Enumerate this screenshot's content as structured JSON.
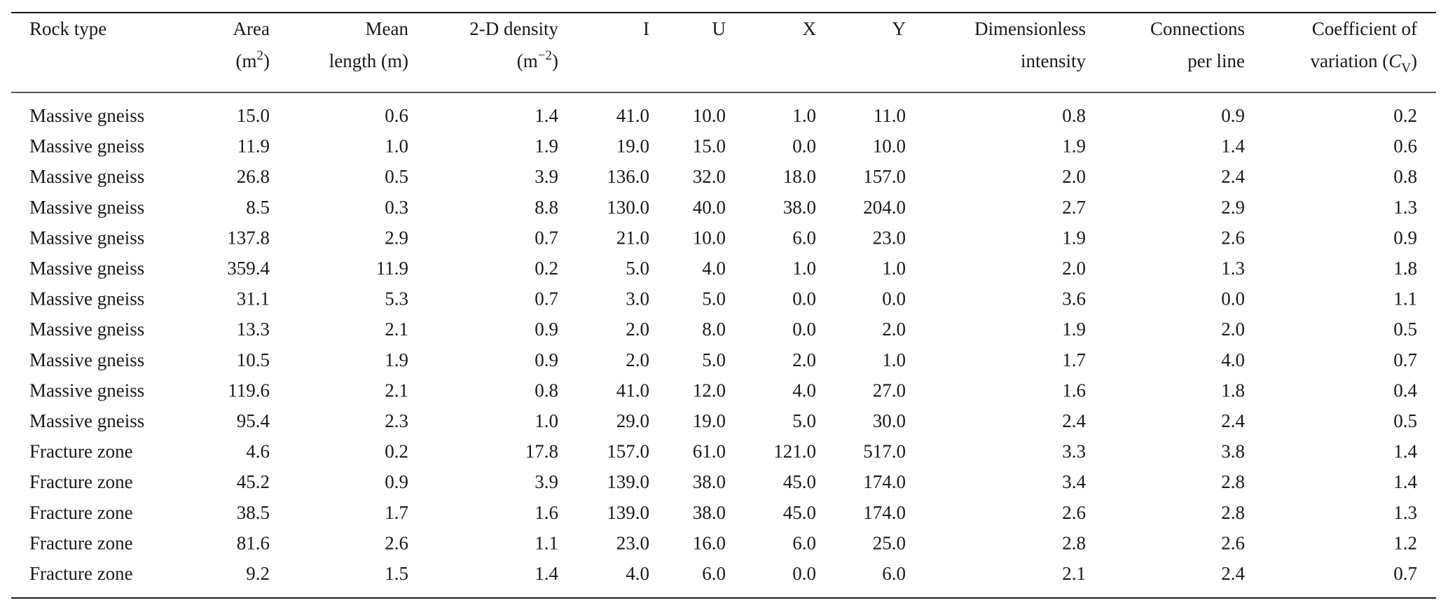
{
  "table": {
    "columns": [
      [
        [
          "Rock type"
        ]
      ],
      [
        [
          "Area"
        ],
        [
          "(m",
          {
            "sup": "2"
          },
          ")"
        ]
      ],
      [
        [
          "Mean"
        ],
        [
          "length (m)"
        ]
      ],
      [
        [
          "2-D density"
        ],
        [
          "(m",
          {
            "sup": "−2"
          },
          ")"
        ]
      ],
      [
        [
          "I"
        ]
      ],
      [
        [
          "U"
        ]
      ],
      [
        [
          "X"
        ]
      ],
      [
        [
          "Y"
        ]
      ],
      [
        [
          "Dimensionless"
        ],
        [
          "intensity"
        ]
      ],
      [
        [
          "Connections"
        ],
        [
          "per line"
        ]
      ],
      [
        [
          "Coefficient of"
        ],
        [
          "variation (",
          {
            "i": "C"
          },
          {
            "sub": "V"
          },
          ")"
        ]
      ]
    ],
    "rows": [
      [
        "Massive gneiss",
        "15.0",
        "0.6",
        "1.4",
        "41.0",
        "10.0",
        "1.0",
        "11.0",
        "0.8",
        "0.9",
        "0.2"
      ],
      [
        "Massive gneiss",
        "11.9",
        "1.0",
        "1.9",
        "19.0",
        "15.0",
        "0.0",
        "10.0",
        "1.9",
        "1.4",
        "0.6"
      ],
      [
        "Massive gneiss",
        "26.8",
        "0.5",
        "3.9",
        "136.0",
        "32.0",
        "18.0",
        "157.0",
        "2.0",
        "2.4",
        "0.8"
      ],
      [
        "Massive gneiss",
        "8.5",
        "0.3",
        "8.8",
        "130.0",
        "40.0",
        "38.0",
        "204.0",
        "2.7",
        "2.9",
        "1.3"
      ],
      [
        "Massive gneiss",
        "137.8",
        "2.9",
        "0.7",
        "21.0",
        "10.0",
        "6.0",
        "23.0",
        "1.9",
        "2.6",
        "0.9"
      ],
      [
        "Massive gneiss",
        "359.4",
        "11.9",
        "0.2",
        "5.0",
        "4.0",
        "1.0",
        "1.0",
        "2.0",
        "1.3",
        "1.8"
      ],
      [
        "Massive gneiss",
        "31.1",
        "5.3",
        "0.7",
        "3.0",
        "5.0",
        "0.0",
        "0.0",
        "3.6",
        "0.0",
        "1.1"
      ],
      [
        "Massive gneiss",
        "13.3",
        "2.1",
        "0.9",
        "2.0",
        "8.0",
        "0.0",
        "2.0",
        "1.9",
        "2.0",
        "0.5"
      ],
      [
        "Massive gneiss",
        "10.5",
        "1.9",
        "0.9",
        "2.0",
        "5.0",
        "2.0",
        "1.0",
        "1.7",
        "4.0",
        "0.7"
      ],
      [
        "Massive gneiss",
        "119.6",
        "2.1",
        "0.8",
        "41.0",
        "12.0",
        "4.0",
        "27.0",
        "1.6",
        "1.8",
        "0.4"
      ],
      [
        "Massive gneiss",
        "95.4",
        "2.3",
        "1.0",
        "29.0",
        "19.0",
        "5.0",
        "30.0",
        "2.4",
        "2.4",
        "0.5"
      ],
      [
        "Fracture zone",
        "4.6",
        "0.2",
        "17.8",
        "157.0",
        "61.0",
        "121.0",
        "517.0",
        "3.3",
        "3.8",
        "1.4"
      ],
      [
        "Fracture zone",
        "45.2",
        "0.9",
        "3.9",
        "139.0",
        "38.0",
        "45.0",
        "174.0",
        "3.4",
        "2.8",
        "1.4"
      ],
      [
        "Fracture zone",
        "38.5",
        "1.7",
        "1.6",
        "139.0",
        "38.0",
        "45.0",
        "174.0",
        "2.6",
        "2.8",
        "1.3"
      ],
      [
        "Fracture zone",
        "81.6",
        "2.6",
        "1.1",
        "23.0",
        "16.0",
        "6.0",
        "25.0",
        "2.8",
        "2.6",
        "1.2"
      ],
      [
        "Fracture zone",
        "9.2",
        "1.5",
        "1.4",
        "4.0",
        "6.0",
        "0.0",
        "6.0",
        "2.1",
        "2.4",
        "0.7"
      ]
    ]
  }
}
